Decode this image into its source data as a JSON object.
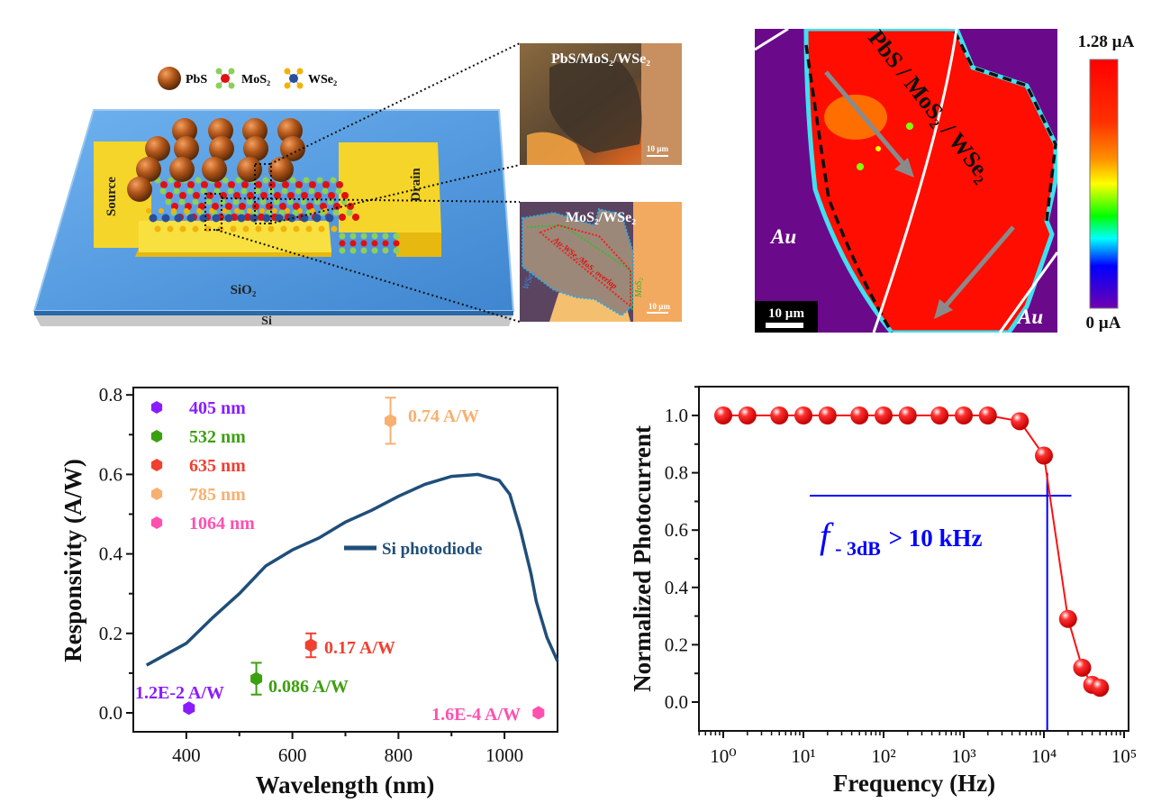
{
  "schematic": {
    "legend": [
      {
        "label": "PbS",
        "icon": "pbs-sphere-icon"
      },
      {
        "label": "MoS₂",
        "icon": "mos2-molecule-icon"
      },
      {
        "label": "WSe₂",
        "icon": "wse2-molecule-icon"
      }
    ],
    "source_label": "Source",
    "drain_label": "Drain",
    "substrate_label": "SiO₂",
    "base_label": "Si",
    "colors": {
      "substrate": "#4f98e0",
      "electrode": "#f5cf1e",
      "pbs": "#b2561a",
      "mo": "#e01010",
      "s": "#8ccf5a",
      "w": "#2a4f9a",
      "se": "#f3b20a"
    }
  },
  "micrographs": [
    {
      "title": "PbS/MoS₂/WSe₂",
      "scale_bar": "10 µm"
    },
    {
      "title": "MoS₂/WSe₂",
      "scale_bar": "10 µm",
      "annotations": [
        "Au-WSe₂/MoS₂ overlap",
        "WSe₂",
        "MoS₂"
      ]
    }
  ],
  "current_map": {
    "label_heterostructure": "PbS / MoS₂ / WSe₂",
    "label_au_left": "Au",
    "label_au_right": "Au",
    "scale_bar": "10 µm",
    "colorbar_max": "1.28 µA",
    "colorbar_min": "0 µA",
    "colormap": [
      "#ff0000",
      "#ff8000",
      "#ffff00",
      "#00ff00",
      "#00ffff",
      "#0000ff",
      "#7000c0"
    ]
  },
  "chart_data": [
    {
      "type": "scatter",
      "xlabel": "Wavelength (nm)",
      "ylabel": "Responsivity (A/W)",
      "xlim": [
        300,
        1100
      ],
      "ylim": [
        -0.05,
        0.8
      ],
      "xticks": [
        "400",
        "600",
        "800",
        "1000"
      ],
      "yticks": [
        "0.0",
        "0.2",
        "0.4",
        "0.6",
        "0.8"
      ],
      "grid": false,
      "legend_placement": "top-left",
      "series": [
        {
          "name": "405 nm",
          "color": "#8a1cff",
          "x": [
            405
          ],
          "y": [
            0.012
          ],
          "err": [
            0.0
          ],
          "label": "1.2E-2 A/W"
        },
        {
          "name": "532 nm",
          "color": "#3ca010",
          "x": [
            532
          ],
          "y": [
            0.086
          ],
          "err": [
            0.04
          ],
          "label": "0.086 A/W"
        },
        {
          "name": "635 nm",
          "color": "#f04030",
          "x": [
            635
          ],
          "y": [
            0.17
          ],
          "err": [
            0.03
          ],
          "label": "0.17 A/W"
        },
        {
          "name": "785 nm",
          "color": "#f8b070",
          "x": [
            785
          ],
          "y": [
            0.735
          ],
          "err": [
            0.058
          ],
          "label": "0.74 A/W"
        },
        {
          "name": "1064 nm",
          "color": "#ff50b0",
          "x": [
            1064
          ],
          "y": [
            0.00016
          ],
          "err": [
            0.0
          ],
          "label": "1.6E-4 A/W"
        }
      ],
      "reference_line": {
        "name": "Si photodiode",
        "color": "#1f4e79",
        "x": [
          325,
          400,
          450,
          500,
          550,
          600,
          650,
          700,
          750,
          800,
          850,
          900,
          950,
          990,
          1010,
          1030,
          1050,
          1060,
          1080,
          1100
        ],
        "y": [
          0.12,
          0.175,
          0.24,
          0.3,
          0.37,
          0.41,
          0.44,
          0.48,
          0.51,
          0.545,
          0.575,
          0.595,
          0.6,
          0.585,
          0.55,
          0.46,
          0.35,
          0.28,
          0.19,
          0.13
        ]
      }
    },
    {
      "type": "line",
      "xlabel": "Frequency (Hz)",
      "ylabel": "Normalized Photocurrent",
      "xscale": "log",
      "xlim": [
        0.5,
        100000
      ],
      "ylim": [
        -0.1,
        1.1
      ],
      "xticks": [
        "10⁰",
        "10¹",
        "10²",
        "10³",
        "10⁴",
        "10⁵"
      ],
      "yticks": [
        "0.0",
        "0.2",
        "0.4",
        "0.6",
        "0.8",
        "1.0"
      ],
      "grid": false,
      "color": "#ff1010",
      "x": [
        1,
        2,
        5,
        10,
        20,
        50,
        100,
        200,
        500,
        1000,
        2000,
        5000,
        10000,
        20000,
        30000,
        40000,
        50000
      ],
      "y": [
        1.0,
        1.0,
        1.0,
        1.0,
        1.0,
        1.0,
        1.0,
        1.0,
        1.0,
        1.0,
        1.0,
        0.98,
        0.86,
        0.29,
        0.12,
        0.06,
        0.05
      ],
      "guide_color": "#0000ff",
      "guide_horizontal": {
        "y": 0.72,
        "x_from": 12,
        "x_to": 22000
      },
      "guide_vertical": {
        "x": 11000,
        "y_from": -0.1,
        "y_to": 0.8
      },
      "annotation": {
        "symbol": "f",
        "subscript": "- 3dB",
        "text": " > 10 kHz"
      }
    }
  ]
}
